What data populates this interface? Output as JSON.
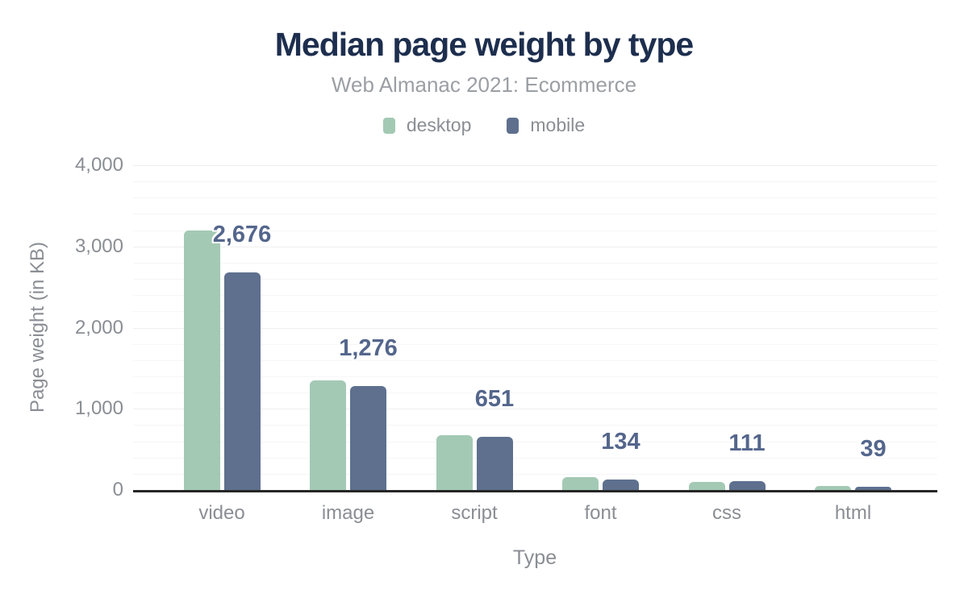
{
  "header": {
    "title": "Median page weight by type",
    "subtitle": "Web Almanac 2021: Ecommerce"
  },
  "legend": {
    "items": [
      {
        "id": "desktop",
        "label": "desktop",
        "color": "#a3c9b4"
      },
      {
        "id": "mobile",
        "label": "mobile",
        "color": "#5e708e"
      }
    ]
  },
  "axes": {
    "y_title": "Page weight (in KB)",
    "x_title": "Type"
  },
  "chart_data": {
    "type": "bar",
    "title": "Median page weight by type",
    "subtitle": "Web Almanac 2021: Ecommerce",
    "categories": [
      "video",
      "image",
      "script",
      "font",
      "css",
      "html"
    ],
    "series": [
      {
        "name": "desktop",
        "color": "#a3c9b4",
        "values": [
          3200,
          1350,
          675,
          160,
          95,
          45
        ]
      },
      {
        "name": "mobile",
        "color": "#5e708e",
        "values": [
          2676,
          1276,
          651,
          134,
          111,
          39
        ]
      }
    ],
    "data_labels": {
      "labeled_series": "mobile",
      "values": [
        "2,676",
        "1,276",
        "651",
        "134",
        "111",
        "39"
      ],
      "color": "#54668c"
    },
    "xlabel": "Type",
    "ylabel": "Page weight (in KB)",
    "ylim": [
      0,
      4000
    ],
    "yticks": [
      {
        "value": 0,
        "label": "0"
      },
      {
        "value": 1000,
        "label": "1,000"
      },
      {
        "value": 2000,
        "label": "2,000"
      },
      {
        "value": 3000,
        "label": "3,000"
      },
      {
        "value": 4000,
        "label": "4,000"
      }
    ],
    "grid": {
      "visible": true,
      "minor_step": 200,
      "major_step": 1000
    },
    "legend_position": "top",
    "colors": {
      "title": "#1d2e4e",
      "subtitle": "#9b9fa4",
      "axis_text": "#8a8e94",
      "axis_line": "#262626",
      "gridline_minor": "#f6f6f6",
      "gridline_major": "#efefef",
      "value_label": "#54668c"
    }
  }
}
